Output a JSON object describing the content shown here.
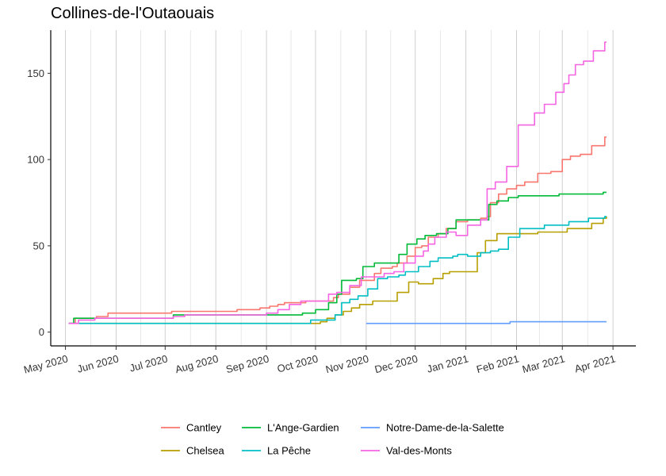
{
  "chart_data": {
    "type": "line",
    "title": "Collines-de-l'Outaouais",
    "xlabel": "",
    "ylabel": "",
    "xlim": [
      "2020-04-22",
      "2021-04-15"
    ],
    "ylim": [
      -8,
      175
    ],
    "grid": "vertical lines at each month",
    "legend_position": "bottom",
    "y_ticks": [
      0,
      50,
      100,
      150
    ],
    "x_ticks": [
      {
        "date": "2020-05-01",
        "label": "May 2020"
      },
      {
        "date": "2020-06-01",
        "label": "Jun 2020"
      },
      {
        "date": "2020-07-01",
        "label": "Jul 2020"
      },
      {
        "date": "2020-08-01",
        "label": "Aug 2020"
      },
      {
        "date": "2020-09-01",
        "label": "Sep 2020"
      },
      {
        "date": "2020-10-01",
        "label": "Oct 2020"
      },
      {
        "date": "2020-11-01",
        "label": "Nov 2020"
      },
      {
        "date": "2020-12-01",
        "label": "Dec 2020"
      },
      {
        "date": "2021-01-01",
        "label": "Jan 2021"
      },
      {
        "date": "2021-02-01",
        "label": "Feb 2021"
      },
      {
        "date": "2021-03-01",
        "label": "Mar 2021"
      },
      {
        "date": "2021-04-01",
        "label": "Apr 2021"
      }
    ],
    "series": [
      {
        "name": "Cantley",
        "color": "#F8766D",
        "points": [
          [
            "2020-05-03",
            5
          ],
          [
            "2020-05-07",
            8
          ],
          [
            "2020-05-20",
            9
          ],
          [
            "2020-05-27",
            11
          ],
          [
            "2020-07-05",
            12
          ],
          [
            "2020-08-14",
            13
          ],
          [
            "2020-08-28",
            14
          ],
          [
            "2020-09-03",
            15
          ],
          [
            "2020-09-08",
            16
          ],
          [
            "2020-09-12",
            17
          ],
          [
            "2020-09-25",
            18
          ],
          [
            "2020-10-12",
            20
          ],
          [
            "2020-10-15",
            22
          ],
          [
            "2020-10-22",
            26
          ],
          [
            "2020-10-28",
            30
          ],
          [
            "2020-11-06",
            34
          ],
          [
            "2020-11-10",
            37
          ],
          [
            "2020-11-17",
            38
          ],
          [
            "2020-11-20",
            40
          ],
          [
            "2020-11-26",
            44
          ],
          [
            "2020-12-01",
            49
          ],
          [
            "2020-12-05",
            50
          ],
          [
            "2020-12-09",
            55
          ],
          [
            "2020-12-15",
            57
          ],
          [
            "2020-12-20",
            60
          ],
          [
            "2020-12-26",
            64
          ],
          [
            "2021-01-02",
            65
          ],
          [
            "2021-01-10",
            66
          ],
          [
            "2021-01-14",
            67
          ],
          [
            "2021-01-16",
            75
          ],
          [
            "2021-01-21",
            80
          ],
          [
            "2021-01-26",
            83
          ],
          [
            "2021-02-01",
            85
          ],
          [
            "2021-02-06",
            87
          ],
          [
            "2021-02-14",
            92
          ],
          [
            "2021-02-22",
            93
          ],
          [
            "2021-03-01",
            100
          ],
          [
            "2021-03-06",
            102
          ],
          [
            "2021-03-12",
            103
          ],
          [
            "2021-03-19",
            108
          ],
          [
            "2021-03-27",
            113
          ],
          [
            "2021-03-28",
            113
          ]
        ]
      },
      {
        "name": "Chelsea",
        "color": "#B79F00",
        "points": [
          [
            "2020-05-03",
            5
          ],
          [
            "2020-09-18",
            5
          ],
          [
            "2020-10-04",
            6
          ],
          [
            "2020-10-08",
            8
          ],
          [
            "2020-10-13",
            10
          ],
          [
            "2020-10-18",
            12
          ],
          [
            "2020-10-23",
            14
          ],
          [
            "2020-10-28",
            16
          ],
          [
            "2020-11-05",
            18
          ],
          [
            "2020-11-20",
            23
          ],
          [
            "2020-11-27",
            29
          ],
          [
            "2020-12-03",
            28
          ],
          [
            "2020-12-07",
            28
          ],
          [
            "2020-12-12",
            31
          ],
          [
            "2020-12-18",
            34
          ],
          [
            "2020-12-22",
            35
          ],
          [
            "2021-01-08",
            46
          ],
          [
            "2021-01-13",
            53
          ],
          [
            "2021-01-20",
            57
          ],
          [
            "2021-02-05",
            57
          ],
          [
            "2021-02-14",
            58
          ],
          [
            "2021-02-28",
            58
          ],
          [
            "2021-03-04",
            60
          ],
          [
            "2021-03-19",
            63
          ],
          [
            "2021-03-26",
            66
          ],
          [
            "2021-03-28",
            67
          ]
        ]
      },
      {
        "name": "L'Ange-Gardien",
        "color": "#00BA38",
        "points": [
          [
            "2020-05-03",
            5
          ],
          [
            "2020-05-06",
            8
          ],
          [
            "2020-05-31",
            8
          ],
          [
            "2020-07-06",
            10
          ],
          [
            "2020-09-16",
            10
          ],
          [
            "2020-09-23",
            11
          ],
          [
            "2020-10-01",
            13
          ],
          [
            "2020-10-09",
            17
          ],
          [
            "2020-10-14",
            22
          ],
          [
            "2020-10-17",
            30
          ],
          [
            "2020-10-26",
            31
          ],
          [
            "2020-10-30",
            38
          ],
          [
            "2020-11-06",
            40
          ],
          [
            "2020-11-21",
            45
          ],
          [
            "2020-11-26",
            51
          ],
          [
            "2020-12-02",
            54
          ],
          [
            "2020-12-07",
            56
          ],
          [
            "2020-12-14",
            57
          ],
          [
            "2020-12-21",
            60
          ],
          [
            "2020-12-26",
            65
          ],
          [
            "2021-01-15",
            74
          ],
          [
            "2021-01-20",
            76
          ],
          [
            "2021-01-27",
            78
          ],
          [
            "2021-02-02",
            79
          ],
          [
            "2021-02-27",
            80
          ],
          [
            "2021-03-26",
            81
          ],
          [
            "2021-03-28",
            81
          ]
        ]
      },
      {
        "name": "La Pêche",
        "color": "#00BFC4",
        "points": [
          [
            "2020-05-03",
            5
          ],
          [
            "2020-09-22",
            5
          ],
          [
            "2020-09-28",
            7
          ],
          [
            "2020-10-07",
            7
          ],
          [
            "2020-10-13",
            10
          ],
          [
            "2020-10-17",
            17
          ],
          [
            "2020-10-22",
            19
          ],
          [
            "2020-10-27",
            21
          ],
          [
            "2020-11-02",
            25
          ],
          [
            "2020-11-08",
            31
          ],
          [
            "2020-11-14",
            32
          ],
          [
            "2020-11-21",
            33
          ],
          [
            "2020-11-25",
            35
          ],
          [
            "2020-12-03",
            38
          ],
          [
            "2020-12-10",
            41
          ],
          [
            "2020-12-15",
            43
          ],
          [
            "2020-12-24",
            44
          ],
          [
            "2020-12-27",
            45
          ],
          [
            "2021-01-02",
            44
          ],
          [
            "2021-01-10",
            46
          ],
          [
            "2021-01-16",
            47
          ],
          [
            "2021-01-21",
            48
          ],
          [
            "2021-01-27",
            55
          ],
          [
            "2021-02-03",
            60
          ],
          [
            "2021-02-14",
            60
          ],
          [
            "2021-02-18",
            62
          ],
          [
            "2021-03-01",
            62
          ],
          [
            "2021-03-05",
            64
          ],
          [
            "2021-03-17",
            66
          ],
          [
            "2021-03-27",
            67
          ],
          [
            "2021-03-28",
            67
          ]
        ]
      },
      {
        "name": "Notre-Dame-de-la-Salette",
        "color": "#619CFF",
        "points": [
          [
            "2020-11-01",
            5
          ],
          [
            "2021-01-26",
            5
          ],
          [
            "2021-01-28",
            6
          ],
          [
            "2021-03-28",
            6
          ]
        ]
      },
      {
        "name": "Val-des-Monts",
        "color": "#F564E3",
        "points": [
          [
            "2020-05-03",
            5
          ],
          [
            "2020-05-09",
            7
          ],
          [
            "2020-05-19",
            8
          ],
          [
            "2020-06-26",
            8
          ],
          [
            "2020-07-06",
            9
          ],
          [
            "2020-07-13",
            10
          ],
          [
            "2020-08-20",
            10
          ],
          [
            "2020-09-01",
            11
          ],
          [
            "2020-09-08",
            13
          ],
          [
            "2020-09-15",
            16
          ],
          [
            "2020-09-22",
            18
          ],
          [
            "2020-10-02",
            18
          ],
          [
            "2020-10-09",
            22
          ],
          [
            "2020-10-14",
            23
          ],
          [
            "2020-10-22",
            27
          ],
          [
            "2020-10-29",
            32
          ],
          [
            "2020-11-05",
            32
          ],
          [
            "2020-11-12",
            34
          ],
          [
            "2020-11-18",
            35
          ],
          [
            "2020-11-24",
            40
          ],
          [
            "2020-12-01",
            44
          ],
          [
            "2020-12-06",
            47
          ],
          [
            "2020-12-09",
            51
          ],
          [
            "2020-12-13",
            55
          ],
          [
            "2020-12-20",
            58
          ],
          [
            "2020-12-26",
            56
          ],
          [
            "2021-01-02",
            62
          ],
          [
            "2021-01-10",
            65
          ],
          [
            "2021-01-14",
            83
          ],
          [
            "2021-01-19",
            87
          ],
          [
            "2021-01-26",
            96
          ],
          [
            "2021-02-02",
            120
          ],
          [
            "2021-02-07",
            120
          ],
          [
            "2021-02-12",
            127
          ],
          [
            "2021-02-18",
            132
          ],
          [
            "2021-02-25",
            139
          ],
          [
            "2021-03-02",
            144
          ],
          [
            "2021-03-05",
            149
          ],
          [
            "2021-03-09",
            155
          ],
          [
            "2021-03-14",
            157
          ],
          [
            "2021-03-20",
            163
          ],
          [
            "2021-03-26",
            163
          ],
          [
            "2021-03-27",
            168
          ],
          [
            "2021-03-28",
            168
          ]
        ]
      }
    ],
    "legend_rows": [
      [
        "Cantley",
        "L'Ange-Gardien",
        "Notre-Dame-de-la-Salette"
      ],
      [
        "Chelsea",
        "La Pêche",
        "Val-des-Monts"
      ]
    ]
  }
}
